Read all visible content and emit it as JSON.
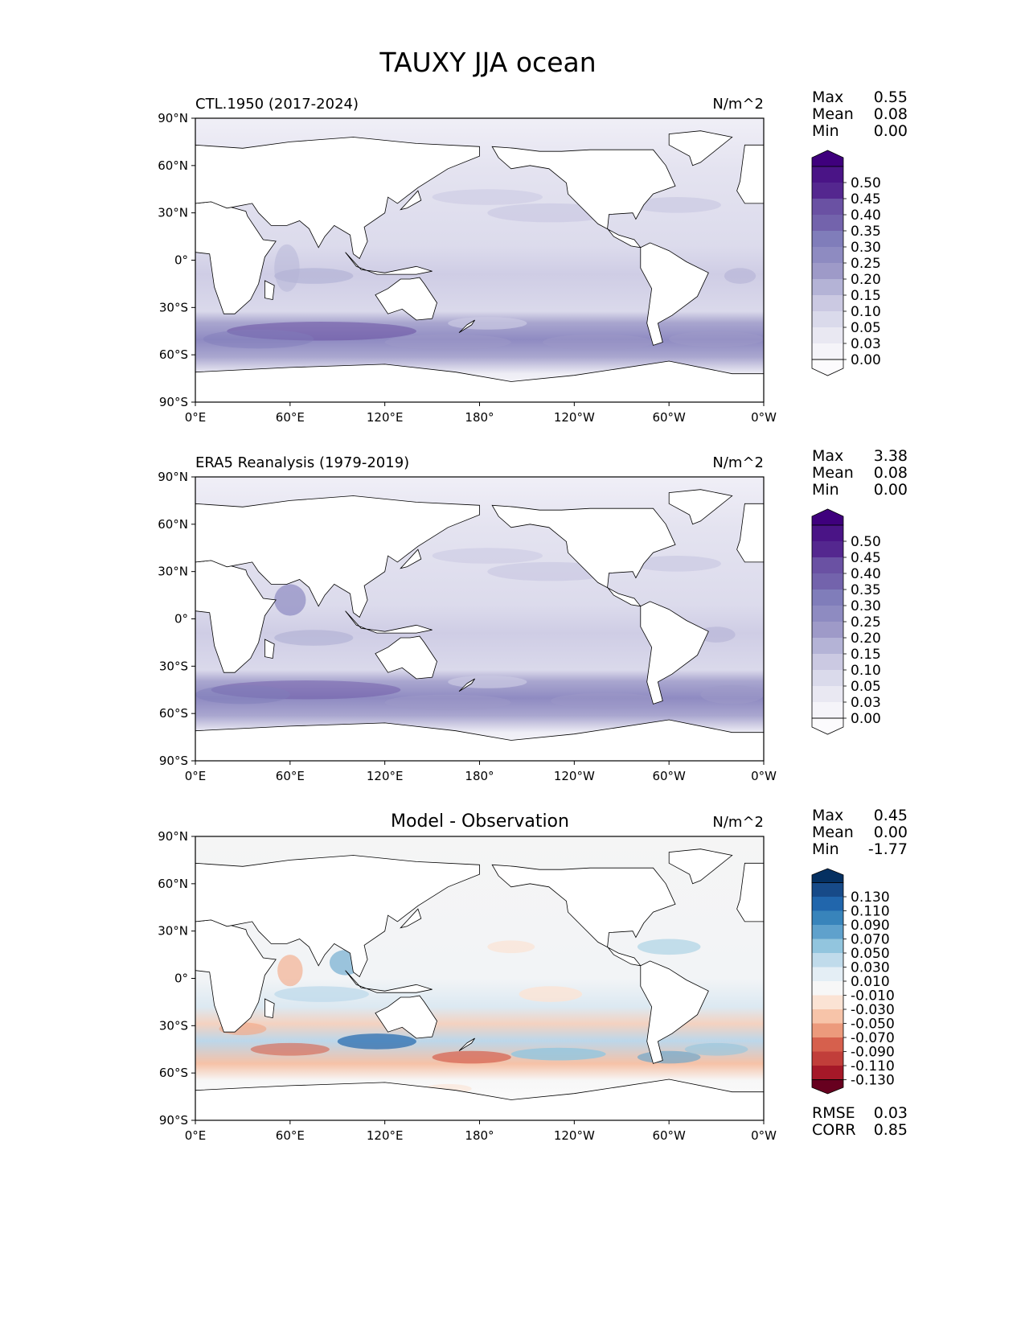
{
  "figure": {
    "title": "TAUXY JJA ocean"
  },
  "axes": {
    "lat_ticks": [
      "90°N",
      "60°N",
      "30°N",
      "0°",
      "30°S",
      "60°S",
      "90°S"
    ],
    "lon_ticks": [
      "0°E",
      "60°E",
      "120°E",
      "180°",
      "120°W",
      "60°W",
      "0°W"
    ]
  },
  "panels": [
    {
      "title": "CTL.1950 (2017-2024)",
      "units": "N/m^2",
      "stats": [
        {
          "label": "Max",
          "value": "0.55"
        },
        {
          "label": "Mean",
          "value": "0.08"
        },
        {
          "label": "Min",
          "value": "0.00"
        }
      ],
      "colorbar": {
        "labels": [
          "0.50",
          "0.45",
          "0.40",
          "0.35",
          "0.30",
          "0.25",
          "0.20",
          "0.15",
          "0.10",
          "0.05",
          "0.03",
          "0.00"
        ],
        "colors": [
          "#3f007d",
          "#4a1486",
          "#54278f",
          "#6a51a3",
          "#7363ac",
          "#807dba",
          "#8e8bc1",
          "#9e9ac8",
          "#b4b3d6",
          "#cbc9e2",
          "#dadaeb",
          "#e9e8f2",
          "#f5f4f9",
          "#fcfbfd"
        ]
      },
      "footer": []
    },
    {
      "title": "ERA5 Reanalysis (1979-2019)",
      "units": "N/m^2",
      "stats": [
        {
          "label": "Max",
          "value": "3.38"
        },
        {
          "label": "Mean",
          "value": "0.08"
        },
        {
          "label": "Min",
          "value": "0.00"
        }
      ],
      "colorbar": {
        "labels": [
          "0.50",
          "0.45",
          "0.40",
          "0.35",
          "0.30",
          "0.25",
          "0.20",
          "0.15",
          "0.10",
          "0.05",
          "0.03",
          "0.00"
        ],
        "colors": [
          "#3f007d",
          "#4a1486",
          "#54278f",
          "#6a51a3",
          "#7363ac",
          "#807dba",
          "#8e8bc1",
          "#9e9ac8",
          "#b4b3d6",
          "#cbc9e2",
          "#dadaeb",
          "#e9e8f2",
          "#f5f4f9",
          "#fcfbfd"
        ]
      },
      "footer": []
    },
    {
      "title": "Model - Observation",
      "units": "N/m^2",
      "stats": [
        {
          "label": "Max",
          "value": "0.45"
        },
        {
          "label": "Mean",
          "value": "0.00"
        },
        {
          "label": "Min",
          "value": "-1.77"
        }
      ],
      "colorbar": {
        "labels": [
          "0.130",
          "0.110",
          "0.090",
          "0.070",
          "0.050",
          "0.030",
          "0.010",
          "-0.010",
          "-0.030",
          "-0.050",
          "-0.070",
          "-0.090",
          "-0.110",
          "-0.130"
        ],
        "colors": [
          "#053061",
          "#174a88",
          "#2166ac",
          "#3884bb",
          "#5fa1cc",
          "#92c5de",
          "#c0dbeb",
          "#e4eef5",
          "#f7f7f7",
          "#fbe3d4",
          "#f7c4a9",
          "#ec9a7c",
          "#d6604d",
          "#c13e3a",
          "#a51828",
          "#67001f"
        ]
      },
      "footer": [
        {
          "label": "RMSE",
          "value": "0.03"
        },
        {
          "label": "CORR",
          "value": "0.85"
        }
      ]
    }
  ],
  "legend_notes": {
    "land_color": "#ffffff",
    "coastline_color": "#000000"
  }
}
